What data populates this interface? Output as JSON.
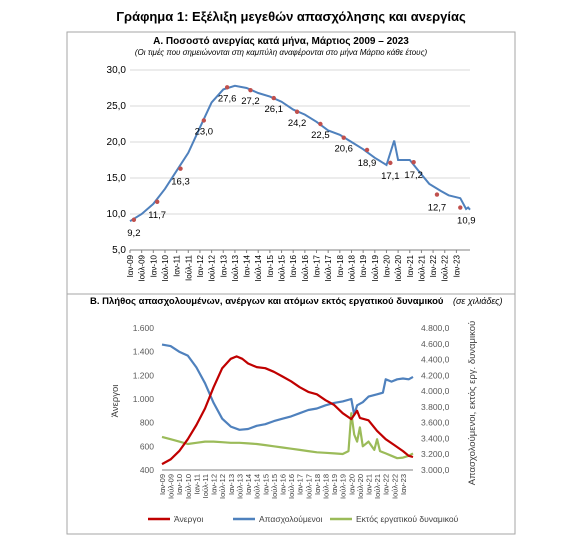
{
  "page_title": "Γράφημα 1: Εξέλιξη μεγεθών απασχόλησης και ανεργίας",
  "chart_data": [
    {
      "type": "line",
      "title": "Α. Ποσοστό ανεργίας κατά μήνα, Μάρτιος 2009 – 2023",
      "subtitle": "(Οι τιμές που σημειώνονται στη καμπύλη αναφέρονται στο μήνα Μάρτιο κάθε έτους)",
      "xlabel": "",
      "ylabel": "",
      "ylim": [
        5.0,
        30.0
      ],
      "y_ticks": [
        "5,0",
        "10,0",
        "15,0",
        "20,0",
        "25,0",
        "30,0"
      ],
      "x_ticks": [
        "Ιαν-09",
        "Ιούλ-09",
        "Ιαν-10",
        "Ιούλ-10",
        "Ιαν-11",
        "Ιούλ-11",
        "Ιαν-12",
        "Ιούλ-12",
        "Ιαν-13",
        "Ιούλ-13",
        "Ιαν-14",
        "Ιούλ-14",
        "Ιαν-15",
        "Ιούλ-15",
        "Ιαν-16",
        "Ιούλ-16",
        "Ιαν-17",
        "Ιούλ-17",
        "Ιαν-18",
        "Ιούλ-18",
        "Ιαν-19",
        "Ιούλ-19",
        "Ιαν-20",
        "Ιούλ-20",
        "Ιαν-21",
        "Ιούλ-21",
        "Ιαν-22",
        "Ιούλ-22",
        "Ιαν-23"
      ],
      "grid": true,
      "line_color": "#4f81bd",
      "marker_color": "#c0504d",
      "series": [
        {
          "name": "",
          "points": [
            [
              0,
              9.0
            ],
            [
              6,
              10.0
            ],
            [
              12,
              11.4
            ],
            [
              18,
              13.5
            ],
            [
              24,
              16.0
            ],
            [
              30,
              18.5
            ],
            [
              36,
              22.0
            ],
            [
              42,
              25.5
            ],
            [
              48,
              27.3
            ],
            [
              54,
              27.8
            ],
            [
              60,
              27.5
            ],
            [
              66,
              26.8
            ],
            [
              72,
              26.3
            ],
            [
              78,
              25.6
            ],
            [
              84,
              24.5
            ],
            [
              90,
              23.8
            ],
            [
              96,
              22.8
            ],
            [
              102,
              21.6
            ],
            [
              108,
              21.0
            ],
            [
              114,
              20.0
            ],
            [
              120,
              19.0
            ],
            [
              126,
              17.8
            ],
            [
              132,
              16.8
            ],
            [
              136,
              20.2
            ],
            [
              138,
              17.5
            ],
            [
              144,
              17.5
            ],
            [
              150,
              15.5
            ],
            [
              154,
              14.2
            ],
            [
              160,
              13.2
            ],
            [
              164,
              12.6
            ],
            [
              170,
              12.2
            ],
            [
              173,
              10.7
            ],
            [
              174,
              10.9
            ],
            [
              175,
              10.6
            ]
          ],
          "march_markers": [
            {
              "x": 2,
              "value": 9.2,
              "label": "9,2"
            },
            {
              "x": 14,
              "value": 11.7,
              "label": "11,7"
            },
            {
              "x": 26,
              "value": 16.3,
              "label": "16,3"
            },
            {
              "x": 38,
              "value": 23.0,
              "label": "23,0"
            },
            {
              "x": 50,
              "value": 27.6,
              "label": "27,6"
            },
            {
              "x": 62,
              "value": 27.2,
              "label": "27,2"
            },
            {
              "x": 74,
              "value": 26.1,
              "label": "26,1"
            },
            {
              "x": 86,
              "value": 24.2,
              "label": "24,2"
            },
            {
              "x": 98,
              "value": 22.5,
              "label": "22,5"
            },
            {
              "x": 110,
              "value": 20.6,
              "label": "20,6"
            },
            {
              "x": 122,
              "value": 18.9,
              "label": "18,9"
            },
            {
              "x": 134,
              "value": 17.1,
              "label": "17,1"
            },
            {
              "x": 146,
              "value": 17.2,
              "label": "17,2"
            },
            {
              "x": 158,
              "value": 12.7,
              "label": "12,7"
            },
            {
              "x": 170,
              "value": 10.9,
              "label": "10,9"
            }
          ]
        }
      ]
    },
    {
      "type": "line",
      "title": "Β. Πλήθος απασχολουμένων, ανέργων και ατόμων εκτός εργατικού δυναμικού",
      "subtitle": "(σε χιλιάδες)",
      "ylabel_left": "Άνεργοι",
      "ylabel_right": "Απασχολούμενοι, εκτός εργ. δυναμικού",
      "ylim_left": [
        400,
        1600
      ],
      "ylim_right": [
        3000.0,
        4800.0
      ],
      "y_ticks_left": [
        "400",
        "600",
        "800",
        "1.000",
        "1.200",
        "1.400",
        "1.600"
      ],
      "y_ticks_right": [
        "3.000,0",
        "3.200,0",
        "3.400,0",
        "3.600,0",
        "3.800,0",
        "4.000,0",
        "4.200,0",
        "4.400,0",
        "4.600,0",
        "4.800,0"
      ],
      "x_ticks": [
        "Ιαν-09",
        "Ιούλ-09",
        "Ιαν-10",
        "Ιούλ-10",
        "Ιαν-11",
        "Ιούλ-11",
        "Ιαν-12",
        "Ιούλ-12",
        "Ιαν-13",
        "Ιούλ-13",
        "Ιαν-14",
        "Ιούλ-14",
        "Ιαν-15",
        "Ιούλ-15",
        "Ιαν-16",
        "Ιούλ-16",
        "Ιαν-17",
        "Ιούλ-17",
        "Ιαν-18",
        "Ιούλ-18",
        "Ιαν-19",
        "Ιούλ-19",
        "Ιαν-20",
        "Ιούλ-20",
        "Ιαν-21",
        "Ιούλ-21",
        "Ιαν-22",
        "Ιούλ-22",
        "Ιαν-23"
      ],
      "grid": false,
      "legend_position": "bottom",
      "series": [
        {
          "name": "Άνεργοι",
          "axis": "left",
          "color": "#c00000",
          "points": [
            [
              0,
              450
            ],
            [
              6,
              490
            ],
            [
              12,
              560
            ],
            [
              18,
              660
            ],
            [
              24,
              780
            ],
            [
              30,
              920
            ],
            [
              36,
              1100
            ],
            [
              42,
              1260
            ],
            [
              48,
              1340
            ],
            [
              52,
              1360
            ],
            [
              56,
              1340
            ],
            [
              60,
              1300
            ],
            [
              66,
              1270
            ],
            [
              72,
              1260
            ],
            [
              78,
              1230
            ],
            [
              84,
              1190
            ],
            [
              90,
              1150
            ],
            [
              96,
              1100
            ],
            [
              102,
              1060
            ],
            [
              108,
              1040
            ],
            [
              114,
              990
            ],
            [
              120,
              950
            ],
            [
              126,
              880
            ],
            [
              132,
              830
            ],
            [
              136,
              900
            ],
            [
              138,
              840
            ],
            [
              144,
              820
            ],
            [
              150,
              730
            ],
            [
              156,
              660
            ],
            [
              162,
              610
            ],
            [
              168,
              560
            ],
            [
              172,
              520
            ],
            [
              175,
              510
            ]
          ]
        },
        {
          "name": "Απασχολούμενοι",
          "axis": "right",
          "color": "#4f81bd",
          "points": [
            [
              0,
              4590
            ],
            [
              6,
              4570
            ],
            [
              12,
              4500
            ],
            [
              18,
              4450
            ],
            [
              24,
              4300
            ],
            [
              30,
              4100
            ],
            [
              36,
              3850
            ],
            [
              42,
              3650
            ],
            [
              48,
              3550
            ],
            [
              54,
              3510
            ],
            [
              60,
              3520
            ],
            [
              66,
              3560
            ],
            [
              72,
              3580
            ],
            [
              78,
              3620
            ],
            [
              84,
              3650
            ],
            [
              90,
              3680
            ],
            [
              96,
              3720
            ],
            [
              102,
              3760
            ],
            [
              108,
              3780
            ],
            [
              114,
              3820
            ],
            [
              120,
              3850
            ],
            [
              126,
              3870
            ],
            [
              132,
              3900
            ],
            [
              134,
              3700
            ],
            [
              136,
              3820
            ],
            [
              140,
              3860
            ],
            [
              144,
              3930
            ],
            [
              150,
              3960
            ],
            [
              154,
              3980
            ],
            [
              156,
              4150
            ],
            [
              160,
              4120
            ],
            [
              164,
              4150
            ],
            [
              168,
              4160
            ],
            [
              172,
              4150
            ],
            [
              175,
              4180
            ]
          ]
        },
        {
          "name": "Εκτός εργατικού δυναμικού",
          "axis": "left",
          "color": "#9bbb59",
          "points": [
            [
              0,
              680
            ],
            [
              6,
              660
            ],
            [
              12,
              640
            ],
            [
              18,
              620
            ],
            [
              24,
              630
            ],
            [
              30,
              640
            ],
            [
              36,
              640
            ],
            [
              42,
              635
            ],
            [
              48,
              630
            ],
            [
              54,
              630
            ],
            [
              60,
              625
            ],
            [
              66,
              620
            ],
            [
              72,
              610
            ],
            [
              78,
              600
            ],
            [
              84,
              590
            ],
            [
              90,
              580
            ],
            [
              96,
              570
            ],
            [
              102,
              560
            ],
            [
              108,
              550
            ],
            [
              114,
              545
            ],
            [
              120,
              540
            ],
            [
              126,
              535
            ],
            [
              130,
              560
            ],
            [
              132,
              880
            ],
            [
              134,
              700
            ],
            [
              136,
              640
            ],
            [
              138,
              760
            ],
            [
              140,
              600
            ],
            [
              144,
              640
            ],
            [
              148,
              570
            ],
            [
              150,
              660
            ],
            [
              152,
              560
            ],
            [
              156,
              540
            ],
            [
              160,
              520
            ],
            [
              164,
              500
            ],
            [
              168,
              505
            ],
            [
              172,
              520
            ],
            [
              175,
              540
            ]
          ]
        }
      ]
    }
  ]
}
